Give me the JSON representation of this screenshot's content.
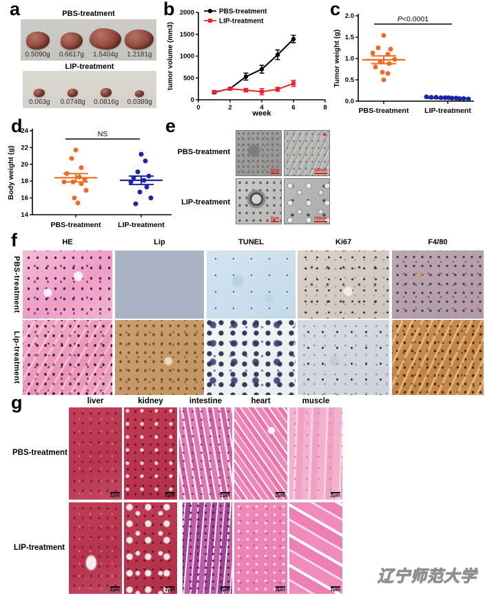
{
  "watermark": "辽宁师范大学",
  "panel_a": {
    "label": "a",
    "groups": [
      {
        "title": "PBS-treatment",
        "weights": [
          "0.5090g",
          "0.6617g",
          "1.5404g",
          "1.2181g"
        ]
      },
      {
        "title": "LIP-treatment",
        "weights": [
          "0.063g",
          "0.0748g",
          "0.0816g",
          "0.0389g"
        ]
      }
    ]
  },
  "panel_b": {
    "label": "b"
  },
  "panel_c": {
    "label": "c"
  },
  "panel_d": {
    "label": "d"
  },
  "panel_e": {
    "label": "e",
    "row_labels": [
      "PBS-treatment",
      "LIP-treatment"
    ],
    "scale_bars": [
      "2μm",
      "500nm",
      "2μm",
      "500nm"
    ]
  },
  "panel_f": {
    "label": "f",
    "column_headers": [
      "HE",
      "Lip",
      "TUNEL",
      "Ki67",
      "F4/80"
    ],
    "row_labels": [
      "PBS-treatment",
      "Lip-treatment"
    ]
  },
  "panel_g": {
    "label": "g",
    "column_headers": [
      "liver",
      "kidney",
      "intestine",
      "heart",
      "muscle"
    ],
    "row_labels": [
      "PBS-treatment",
      "LIP-treatment"
    ],
    "scale_bar": "2μm"
  },
  "chart_data": [
    {
      "id": "tumor-volume-line",
      "type": "line",
      "xlabel": "week",
      "ylabel": "tumor volume (mm3)",
      "xlim": [
        0,
        8
      ],
      "ylim": [
        0,
        2000
      ],
      "xticks": [
        0,
        2,
        4,
        6,
        8
      ],
      "yticks": [
        0,
        500,
        1000,
        1500,
        2000
      ],
      "x": [
        1,
        2,
        3,
        4,
        5,
        6
      ],
      "legend_position": "top-left",
      "series": [
        {
          "name": "PBS-treatment",
          "color": "#000000",
          "marker": "circle",
          "values": [
            170,
            255,
            530,
            700,
            1030,
            1390
          ],
          "errors": [
            30,
            25,
            80,
            90,
            110,
            85
          ]
        },
        {
          "name": "LIP-treatment",
          "color": "#EC2227",
          "marker": "square",
          "values": [
            180,
            250,
            220,
            185,
            240,
            375
          ],
          "errors": [
            25,
            20,
            40,
            70,
            45,
            70
          ]
        }
      ]
    },
    {
      "id": "tumor-weight-scatter",
      "type": "scatter",
      "ylabel": "Tumor weight (g)",
      "ylim": [
        0,
        2
      ],
      "yticks": [
        "0.0",
        "0.5",
        "1.0",
        "1.5",
        "2.0"
      ],
      "annotation": "P<0.0001",
      "groups": [
        {
          "name": "PBS-treatment",
          "color": "#F06A21",
          "values": [
            1.54,
            1.25,
            1.22,
            1.13,
            1.1,
            0.98,
            0.92,
            0.88,
            0.8,
            0.68,
            0.65,
            0.5
          ],
          "mean": 0.97,
          "sem": 0.09
        },
        {
          "name": "LIP-treatment",
          "color": "#1B24A5",
          "values": [
            0.1,
            0.09,
            0.09,
            0.08,
            0.08,
            0.08,
            0.07,
            0.07,
            0.06,
            0.06,
            0.05
          ],
          "mean": 0.07,
          "sem": 0.01
        }
      ]
    },
    {
      "id": "body-weight-scatter",
      "type": "scatter",
      "ylabel": "Body weight (g)",
      "ylim": [
        14,
        24
      ],
      "yticks": [
        14,
        16,
        18,
        20,
        22,
        24
      ],
      "annotation": "NS",
      "groups": [
        {
          "name": "PBS-treatment",
          "color": "#F06A21",
          "values": [
            21.7,
            20.7,
            19.6,
            18.9,
            18.5,
            18.2,
            17.9,
            17.9,
            17.7,
            16.9,
            16.0,
            15.4
          ],
          "mean": 18.4,
          "sem": 0.5
        },
        {
          "name": "LIP-treatment",
          "color": "#1B24A5",
          "values": [
            21.2,
            20.4,
            19.1,
            18.6,
            18.4,
            18.1,
            17.9,
            17.3,
            16.7,
            16.0,
            15.3
          ],
          "mean": 18.1,
          "sem": 0.5
        }
      ]
    }
  ]
}
